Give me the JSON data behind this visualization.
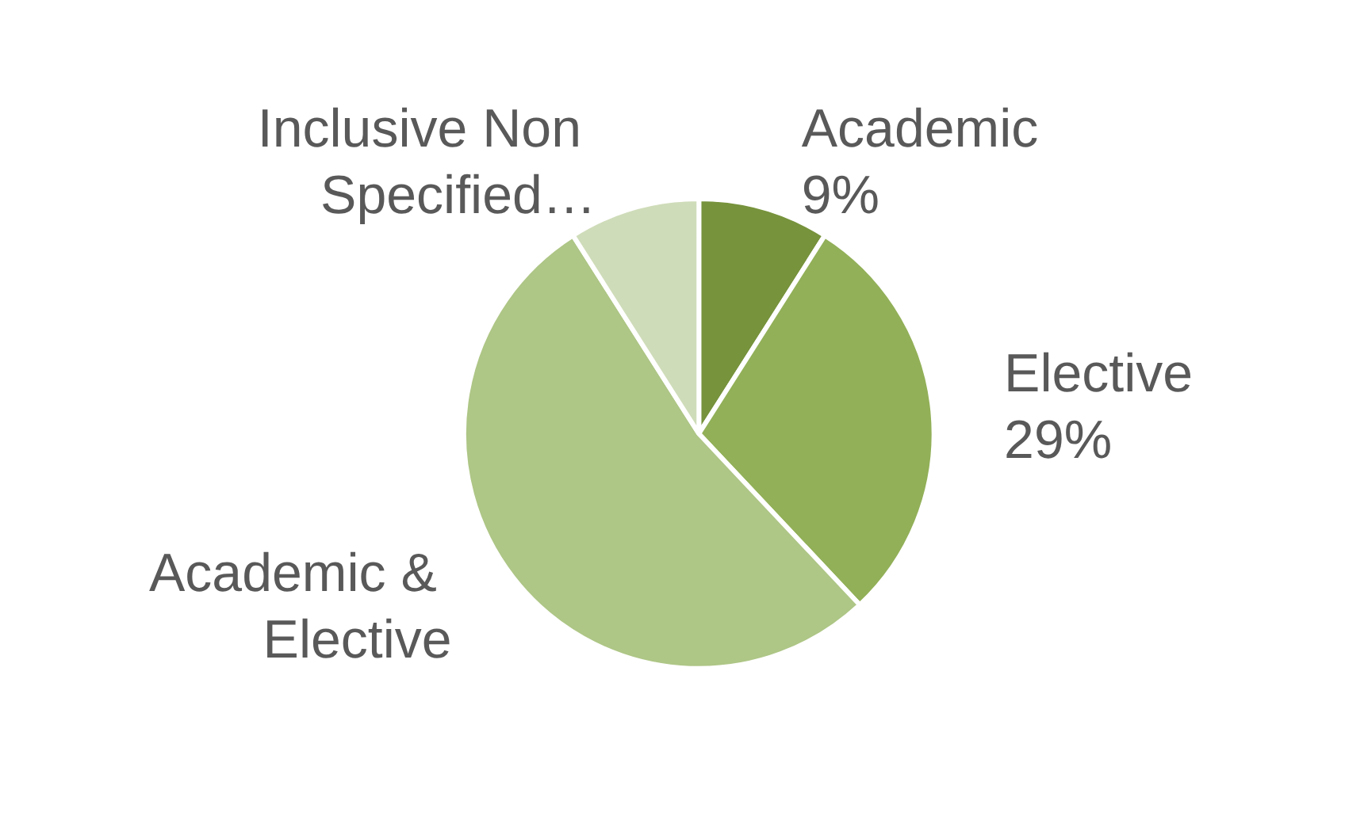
{
  "chart_data": {
    "type": "pie",
    "categories": [
      "Academic",
      "Elective",
      "Academic & Elective",
      "Inclusive Non Specified…"
    ],
    "values": [
      9,
      29,
      53,
      9
    ],
    "value_labels": [
      "9%",
      "29%",
      null,
      null
    ],
    "colors": [
      "#77933c",
      "#92b058",
      "#aec686",
      "#cfdcb9"
    ],
    "legend": false
  }
}
